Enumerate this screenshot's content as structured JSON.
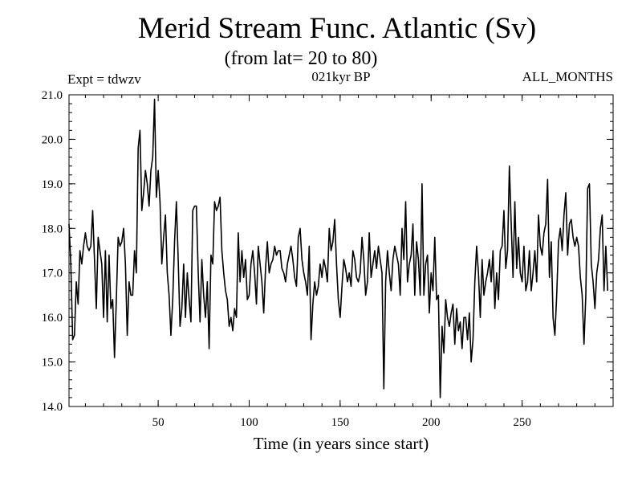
{
  "header": {
    "title": "Merid Stream Func. Atlantic (Sv)",
    "subtitle": "(from lat= 20 to 80)",
    "expt": "Expt = tdwzv",
    "period": "021kyr BP",
    "months": "ALL_MONTHS"
  },
  "chart_data": {
    "type": "line",
    "title": "Merid Stream Func. Atlantic (Sv)",
    "subtitle": "(from lat= 20 to 80)",
    "xlabel": "Time (in years since start)",
    "ylabel": "",
    "xlim": [
      1,
      300
    ],
    "ylim": [
      14.0,
      21.0
    ],
    "xticks": [
      50,
      100,
      150,
      200,
      250
    ],
    "xtick_labels": [
      "50",
      "100",
      "150",
      "200",
      "250"
    ],
    "yticks": [
      14.0,
      15.0,
      16.0,
      17.0,
      18.0,
      19.0,
      20.0,
      21.0
    ],
    "ytick_labels": [
      "14.0",
      "15.0",
      "16.0",
      "17.0",
      "18.0",
      "19.0",
      "20.0",
      "21.0"
    ],
    "grid": false,
    "line_color": "#000000",
    "series": [
      {
        "x_start": 1,
        "x_step": 1,
        "values": [
          18.1,
          17.2,
          15.5,
          15.6,
          16.8,
          16.3,
          17.5,
          17.2,
          17.6,
          17.9,
          17.6,
          17.5,
          17.6,
          18.4,
          17.3,
          16.2,
          17.8,
          17.5,
          17.2,
          16.0,
          17.5,
          15.9,
          17.4,
          16.2,
          16.4,
          15.1,
          16.4,
          17.8,
          17.6,
          17.7,
          18.0,
          17.2,
          15.6,
          16.8,
          16.5,
          16.5,
          17.5,
          17.0,
          19.8,
          20.2,
          18.4,
          18.8,
          19.3,
          19.0,
          18.5,
          19.3,
          19.6,
          20.9,
          18.7,
          19.3,
          18.6,
          17.2,
          17.8,
          18.3,
          17.0,
          16.5,
          15.6,
          16.4,
          17.7,
          18.6,
          17.3,
          15.8,
          16.2,
          17.2,
          16.0,
          17.0,
          16.4,
          15.9,
          18.4,
          18.5,
          18.5,
          17.0,
          15.9,
          17.3,
          16.5,
          16.0,
          16.8,
          15.3,
          17.4,
          17.2,
          18.6,
          18.4,
          18.5,
          18.7,
          17.5,
          17.0,
          16.6,
          16.4,
          15.8,
          16.0,
          15.7,
          16.2,
          16.0,
          17.9,
          16.8,
          17.5,
          16.9,
          17.3,
          16.4,
          16.5,
          17.2,
          17.5,
          17.0,
          16.3,
          17.6,
          17.2,
          16.8,
          16.1,
          17.1,
          17.7,
          17.0,
          17.2,
          17.3,
          17.6,
          17.4,
          17.5,
          17.5,
          17.1,
          17.0,
          16.8,
          17.2,
          17.4,
          17.6,
          17.3,
          16.9,
          16.7,
          17.8,
          18.0,
          17.3,
          17.0,
          16.8,
          16.5,
          17.6,
          15.5,
          16.3,
          16.8,
          16.5,
          16.7,
          17.2,
          16.9,
          17.3,
          17.1,
          16.8,
          18.0,
          17.5,
          17.7,
          18.2,
          17.2,
          16.4,
          16.0,
          16.7,
          17.3,
          17.1,
          16.8,
          17.0,
          16.7,
          17.5,
          17.3,
          16.9,
          16.8,
          17.0,
          17.8,
          17.3,
          16.5,
          16.8,
          17.9,
          16.9,
          17.2,
          17.5,
          17.1,
          17.6,
          17.3,
          17.0,
          14.4,
          16.8,
          17.5,
          17.0,
          16.6,
          17.3,
          17.6,
          17.4,
          17.2,
          16.5,
          18.0,
          17.3,
          18.6,
          16.8,
          17.2,
          17.4,
          18.1,
          16.5,
          17.7,
          17.3,
          16.5,
          19.0,
          16.5,
          17.2,
          17.4,
          16.1,
          17.0,
          16.6,
          17.8,
          16.4,
          16.5,
          14.2,
          15.8,
          15.2,
          16.4,
          16.0,
          15.8,
          16.1,
          16.3,
          15.4,
          16.2,
          15.7,
          15.9,
          15.3,
          16.0,
          16.0,
          15.5,
          16.1,
          15.0,
          15.5,
          16.8,
          17.6,
          17.0,
          16.0,
          17.3,
          16.5,
          16.8,
          17.0,
          17.3,
          16.8,
          17.5,
          16.2,
          17.0,
          16.4,
          17.5,
          17.6,
          18.4,
          17.1,
          17.5,
          19.4,
          18.1,
          16.9,
          18.6,
          17.1,
          17.8,
          17.0,
          16.8,
          17.6,
          16.6,
          16.8,
          17.5,
          16.6,
          17.0,
          17.5,
          16.8,
          18.3,
          17.6,
          17.4,
          17.9,
          18.1,
          19.1,
          16.9,
          17.7,
          16.0,
          15.6,
          16.5,
          17.7,
          18.0,
          17.5,
          18.3,
          18.8,
          17.4,
          18.1,
          18.2,
          17.8,
          17.6,
          17.8,
          17.6,
          16.9,
          16.5,
          15.4,
          16.5,
          18.9,
          19.0,
          17.2,
          16.8,
          16.2,
          17.0,
          17.3,
          18.0,
          18.3,
          16.6,
          17.6,
          16.6
        ]
      }
    ]
  }
}
